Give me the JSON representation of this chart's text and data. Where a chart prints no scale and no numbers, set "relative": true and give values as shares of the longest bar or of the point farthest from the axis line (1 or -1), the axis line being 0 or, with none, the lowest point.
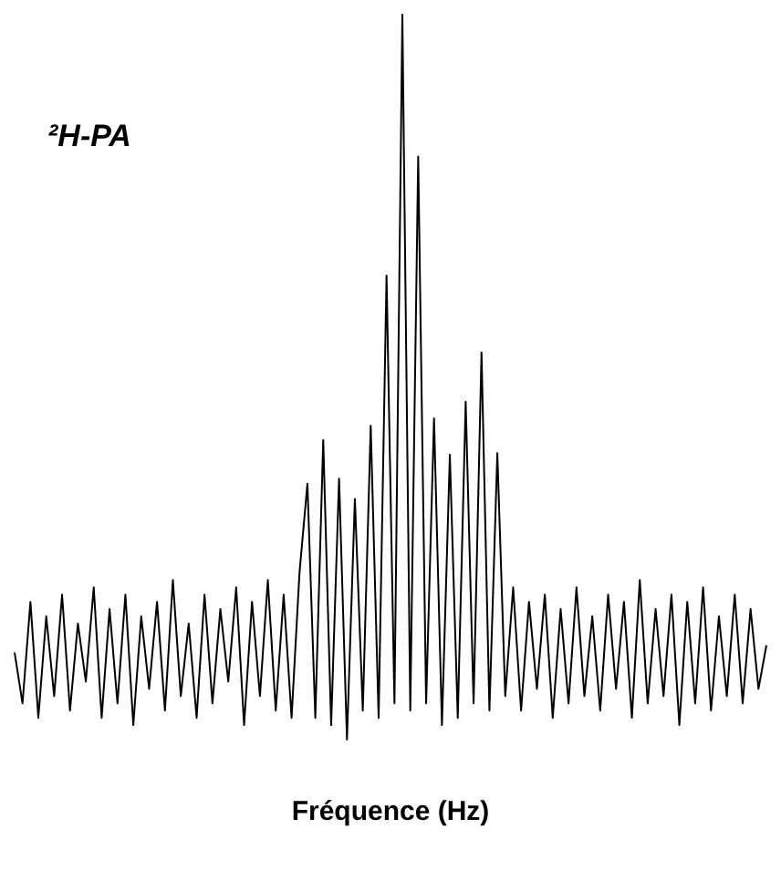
{
  "chart_data": {
    "type": "line",
    "relative": true,
    "xlabel": "Fréquence (Hz)",
    "annotations": [
      "²H-PA"
    ],
    "categories": [
      null,
      null,
      null,
      null,
      null,
      null,
      null,
      null,
      null,
      null,
      null,
      null,
      null,
      null,
      null,
      null,
      null,
      null,
      null,
      null,
      null,
      null,
      null,
      null,
      null,
      null,
      null,
      null,
      null,
      null,
      null,
      null,
      null,
      null,
      null,
      null,
      null,
      null,
      null,
      null,
      null,
      null,
      null,
      null,
      null,
      null,
      null,
      null,
      null,
      null,
      null,
      null,
      null,
      null,
      null,
      null,
      null,
      null,
      null,
      null,
      null,
      null,
      null,
      null,
      null,
      null,
      null,
      null,
      null,
      null,
      null,
      null,
      null,
      null,
      null,
      null,
      null,
      null,
      null,
      null,
      null,
      null,
      null,
      null,
      null,
      null,
      null,
      null,
      null,
      null,
      null,
      null,
      null,
      null,
      null,
      null
    ],
    "series": [
      {
        "color": "#000000",
        "values": [
          0.12,
          0.05,
          0.19,
          0.03,
          0.17,
          0.06,
          0.2,
          0.04,
          0.16,
          0.08,
          0.21,
          0.03,
          0.18,
          0.05,
          0.2,
          0.02,
          0.17,
          0.07,
          0.19,
          0.04,
          0.22,
          0.06,
          0.16,
          0.03,
          0.2,
          0.05,
          0.18,
          0.08,
          0.21,
          0.02,
          0.19,
          0.06,
          0.22,
          0.04,
          0.2,
          0.03,
          0.23,
          0.353,
          0.03,
          0.413,
          0.02,
          0.36,
          0,
          0.332,
          0.04,
          0.433,
          0.03,
          0.64,
          0.05,
          1,
          0.04,
          0.804,
          0.05,
          0.443,
          0.02,
          0.393,
          0.03,
          0.466,
          0.05,
          0.534,
          0.04,
          0.395,
          0.06,
          0.21,
          0.04,
          0.19,
          0.07,
          0.2,
          0.03,
          0.18,
          0.05,
          0.21,
          0.06,
          0.17,
          0.04,
          0.2,
          0.07,
          0.19,
          0.03,
          0.22,
          0.05,
          0.18,
          0.06,
          0.2,
          0.02,
          0.19,
          0.05,
          0.21,
          0.04,
          0.17,
          0.06,
          0.2,
          0.05,
          0.18,
          0.07,
          0.13
        ]
      }
    ]
  }
}
